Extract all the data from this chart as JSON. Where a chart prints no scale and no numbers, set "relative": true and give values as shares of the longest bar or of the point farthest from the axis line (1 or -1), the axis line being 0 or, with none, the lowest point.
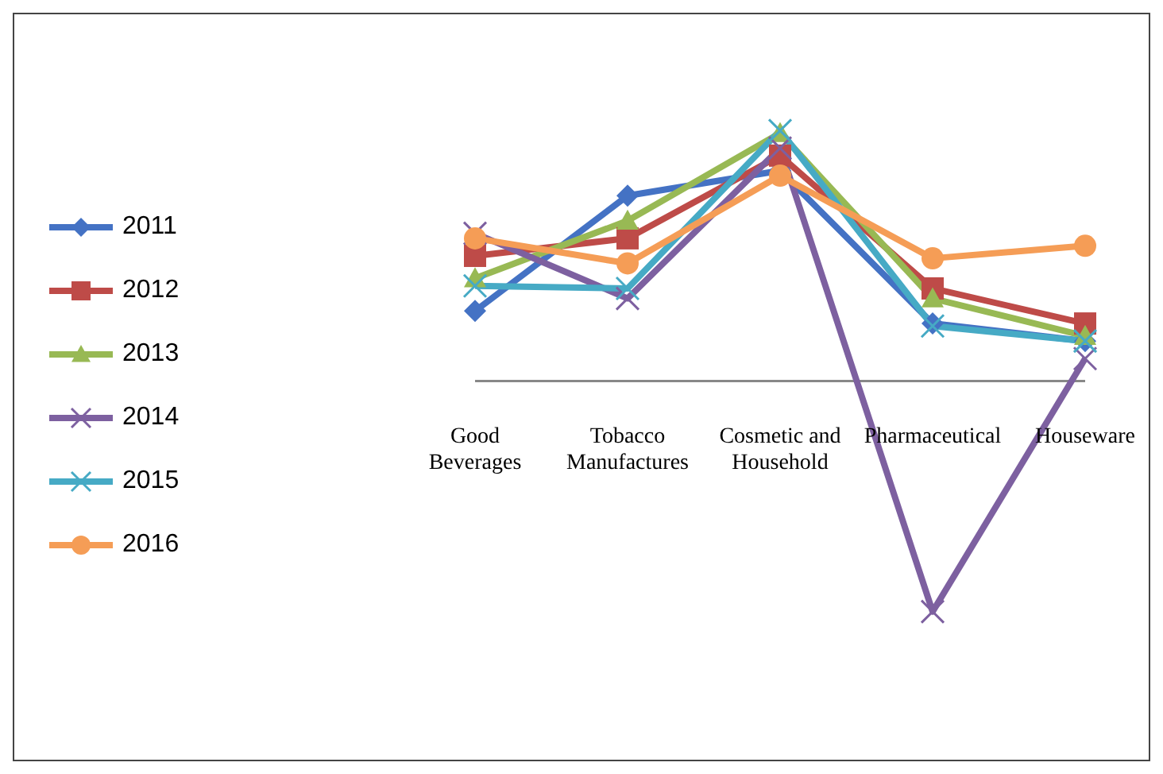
{
  "chart_data": {
    "type": "line",
    "relative": true,
    "categories": [
      "Good Beverages",
      "Tobacco Manufactures",
      "Cosmetic and Household",
      "Pharmaceutical",
      "Houseware"
    ],
    "legend": "left",
    "series": [
      {
        "name": "2011",
        "color": "#4472c4",
        "marker": "diamond",
        "values": [
          0.28,
          0.74,
          0.84,
          0.23,
          0.16
        ]
      },
      {
        "name": "2012",
        "color": "#be4b48",
        "marker": "square",
        "values": [
          0.5,
          0.57,
          0.9,
          0.37,
          0.23
        ]
      },
      {
        "name": "2013",
        "color": "#98b954",
        "marker": "triangle",
        "values": [
          0.41,
          0.64,
          0.99,
          0.33,
          0.18
        ]
      },
      {
        "name": "2014",
        "color": "#7d60a0",
        "marker": "cross",
        "values": [
          0.59,
          0.33,
          0.93,
          -0.92,
          0.09
        ]
      },
      {
        "name": "2015",
        "color": "#46aac5",
        "marker": "cross",
        "values": [
          0.38,
          0.37,
          1.0,
          0.22,
          0.16
        ]
      },
      {
        "name": "2016",
        "color": "#f59d56",
        "marker": "circle",
        "values": [
          0.57,
          0.47,
          0.82,
          0.49,
          0.54
        ]
      }
    ]
  }
}
